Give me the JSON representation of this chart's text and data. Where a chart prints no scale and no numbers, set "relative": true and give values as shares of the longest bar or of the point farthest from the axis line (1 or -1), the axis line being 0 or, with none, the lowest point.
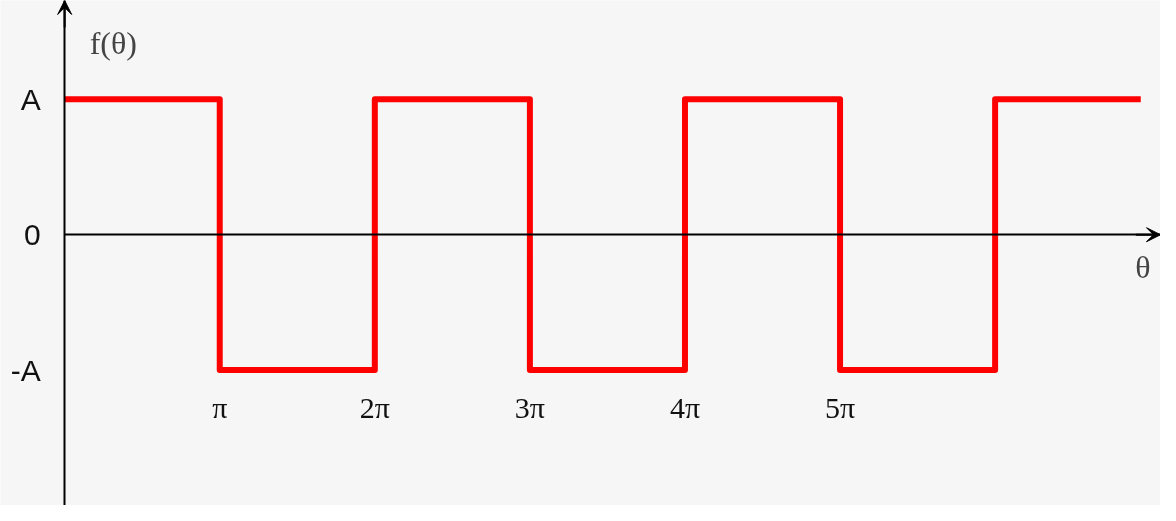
{
  "chart_data": {
    "type": "line",
    "xlabel": "θ",
    "ylabel": "f(θ)",
    "relative": true,
    "x": [
      0,
      3.1416,
      3.1416,
      6.2832,
      6.2832,
      9.4248,
      9.4248,
      12.5664,
      12.5664,
      15.708,
      15.708,
      18.8496,
      18.8496,
      21.8
    ],
    "series": [
      {
        "color": "#ff0000",
        "values": [
          1,
          1,
          -1,
          -1,
          1,
          1,
          -1,
          -1,
          1,
          1,
          -1,
          -1,
          1,
          1
        ]
      }
    ],
    "xlim": [
      -1.3,
      22.2
    ],
    "xticks": [
      {
        "value": 3.1416,
        "label": "π"
      },
      {
        "value": 6.2832,
        "label": "2π"
      },
      {
        "value": 9.4248,
        "label": "3π"
      },
      {
        "value": 12.5664,
        "label": "4π"
      },
      {
        "value": 15.708,
        "label": "5π"
      }
    ],
    "annotations": [
      "A",
      "0",
      "-A"
    ],
    "grid": false,
    "marker": "none",
    "line_style": "solid"
  }
}
